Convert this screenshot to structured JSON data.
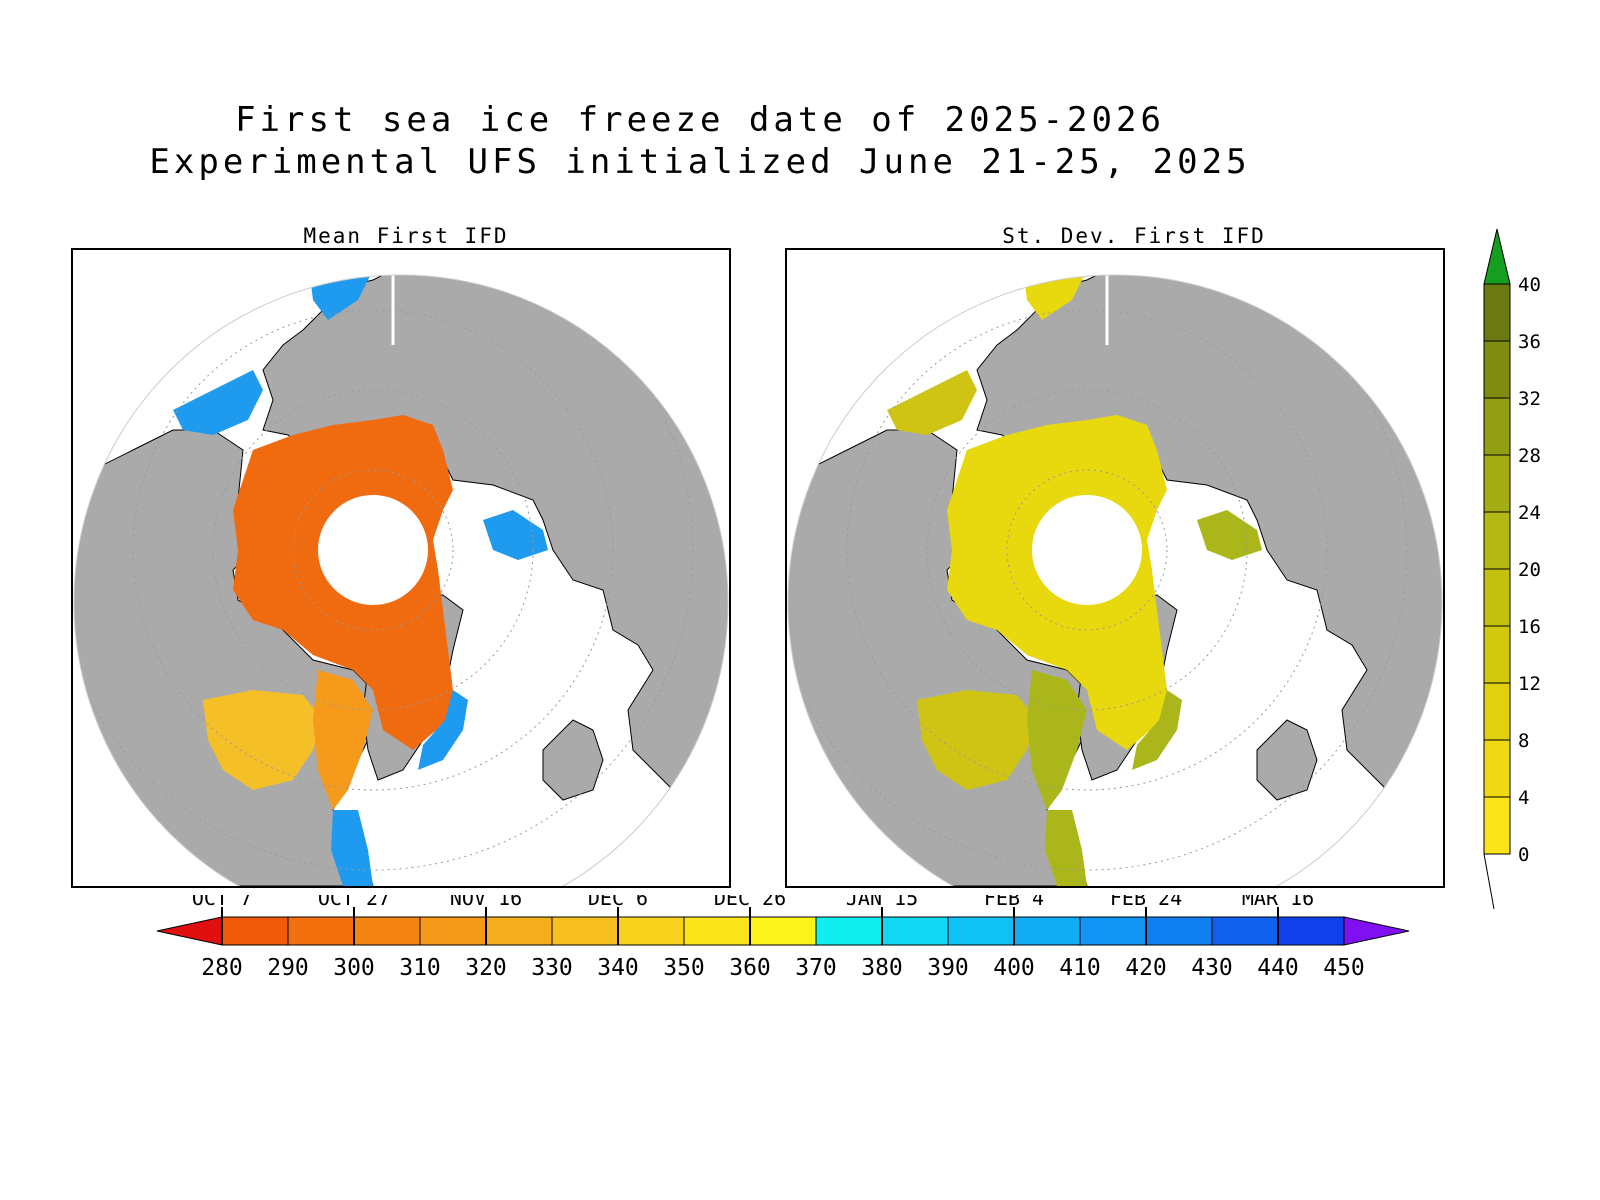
{
  "title_line1": "First sea ice freeze date of 2025-2026",
  "title_line2": "Experimental UFS initialized June 21-25, 2025",
  "panels": [
    {
      "title": "Mean First IFD"
    },
    {
      "title": "St. Dev. First IFD"
    }
  ],
  "colors": {
    "land": "#aaaaaa",
    "open_ocean": "#ffffff",
    "coast": "#000000",
    "mean_ice_early": "#f06a10",
    "mean_ice_mid": "#f59a1a",
    "mean_ice_late": "#f5c027",
    "mean_ice_blue": "#1e9bef",
    "sd_ice": "#e8d80e",
    "sd_ice_dark": "#aab61a"
  },
  "horizontal_colorbar": {
    "values": [
      280,
      290,
      300,
      310,
      320,
      330,
      340,
      350,
      360,
      370,
      380,
      390,
      400,
      410,
      420,
      430,
      440,
      450
    ],
    "date_ticks": [
      {
        "label": "OCT 7",
        "value": 280
      },
      {
        "label": "OCT 27",
        "value": 300
      },
      {
        "label": "NOV 16",
        "value": 320
      },
      {
        "label": "DEC 6",
        "value": 340
      },
      {
        "label": "DEC 26",
        "value": 360
      },
      {
        "label": "JAN 15",
        "value": 380
      },
      {
        "label": "FEB 4",
        "value": 400
      },
      {
        "label": "FEB 24",
        "value": 420
      },
      {
        "label": "MAR 16",
        "value": 440
      }
    ],
    "colors": [
      "#e01010",
      "#f05a0a",
      "#f2700e",
      "#f58512",
      "#f59a18",
      "#f5ae1e",
      "#f7c020",
      "#f9d21e",
      "#fbe41a",
      "#fbf41a",
      "#10eef0",
      "#10d8f2",
      "#10c2f4",
      "#10acf4",
      "#1096f2",
      "#1080f0",
      "#1060ee",
      "#1040ec",
      "#8010f0"
    ]
  },
  "vertical_colorbar": {
    "values": [
      0,
      4,
      8,
      12,
      16,
      20,
      24,
      28,
      32,
      36,
      40
    ],
    "colors": [
      "#fbe41a",
      "#efd814",
      "#e1d010",
      "#d2c80e",
      "#c3c010",
      "#b4b812",
      "#a4ae14",
      "#929e14",
      "#7e8c12",
      "#6a7a10",
      "#159e20"
    ]
  }
}
